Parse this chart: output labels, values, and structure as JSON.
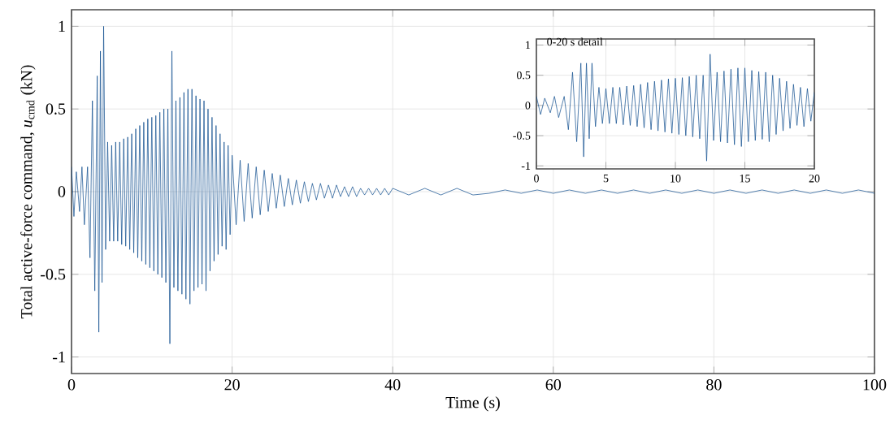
{
  "chart_data": [
    {
      "type": "line",
      "xlabel": "Time (s)",
      "ylabel": "Total active-force command, *u*$_{cmd}$ (kN)",
      "color": "#0b4a8c",
      "grid": true,
      "x": [
        0,
        0.3,
        0.6,
        1,
        1.3,
        1.6,
        2,
        2.3,
        2.6,
        2.9,
        3.2,
        3.4,
        3.6,
        3.8,
        4,
        4.25,
        4.5,
        4.75,
        5,
        5.25,
        5.5,
        5.75,
        6,
        6.25,
        6.5,
        6.75,
        7,
        7.25,
        7.5,
        7.75,
        8,
        8.25,
        8.5,
        8.75,
        9,
        9.25,
        9.5,
        9.75,
        10,
        10.25,
        10.5,
        10.75,
        11,
        11.25,
        11.5,
        11.75,
        12,
        12.25,
        12.5,
        12.75,
        13,
        13.25,
        13.5,
        13.75,
        14,
        14.25,
        14.5,
        14.75,
        15,
        15.25,
        15.5,
        15.75,
        16,
        16.25,
        16.5,
        16.75,
        17,
        17.25,
        17.5,
        17.75,
        18,
        18.25,
        18.5,
        18.75,
        19,
        19.25,
        19.5,
        19.75,
        20,
        20.5,
        21,
        21.5,
        22,
        22.5,
        23,
        23.5,
        24,
        24.5,
        25,
        25.5,
        26,
        26.5,
        27,
        27.5,
        28,
        28.5,
        29,
        29.5,
        30,
        30.5,
        31,
        31.5,
        32,
        32.5,
        33,
        33.5,
        34,
        34.5,
        35,
        35.5,
        36,
        36.5,
        37,
        37.5,
        38,
        38.5,
        39,
        39.5,
        40,
        42,
        44,
        46,
        48,
        50,
        52,
        54,
        56,
        58,
        60,
        62,
        64,
        66,
        68,
        70,
        72,
        74,
        76,
        78,
        80,
        82,
        84,
        86,
        88,
        90,
        92,
        94,
        96,
        98,
        100
      ],
      "values": [
        0.15,
        -0.15,
        0.12,
        -0.12,
        0.15,
        -0.2,
        0.15,
        -0.4,
        0.55,
        -0.6,
        0.7,
        -0.85,
        0.85,
        -0.55,
        1.0,
        -0.35,
        0.3,
        -0.3,
        0.28,
        -0.3,
        0.3,
        -0.3,
        0.3,
        -0.32,
        0.32,
        -0.33,
        0.33,
        -0.35,
        0.35,
        -0.37,
        0.38,
        -0.4,
        0.4,
        -0.42,
        0.42,
        -0.44,
        0.44,
        -0.46,
        0.45,
        -0.48,
        0.46,
        -0.5,
        0.48,
        -0.52,
        0.5,
        -0.55,
        0.5,
        -0.92,
        0.85,
        -0.58,
        0.55,
        -0.6,
        0.57,
        -0.62,
        0.6,
        -0.65,
        0.62,
        -0.68,
        0.62,
        -0.6,
        0.58,
        -0.58,
        0.56,
        -0.56,
        0.55,
        -0.6,
        0.5,
        -0.48,
        0.45,
        -0.42,
        0.4,
        -0.38,
        0.35,
        -0.33,
        0.3,
        -0.35,
        0.28,
        -0.26,
        0.22,
        -0.2,
        0.19,
        -0.18,
        0.17,
        -0.16,
        0.15,
        -0.14,
        0.13,
        -0.12,
        0.11,
        -0.1,
        0.1,
        -0.09,
        0.08,
        -0.08,
        0.07,
        -0.07,
        0.06,
        -0.06,
        0.05,
        -0.05,
        0.05,
        -0.04,
        0.04,
        -0.04,
        0.04,
        -0.03,
        0.03,
        -0.03,
        0.03,
        -0.03,
        0.02,
        -0.02,
        0.02,
        -0.02,
        0.02,
        -0.02,
        0.02,
        -0.02,
        0.02,
        -0.02,
        0.02,
        -0.02,
        0.02,
        -0.02,
        -0.01,
        0.01,
        -0.01,
        0.01,
        -0.01,
        0.01,
        -0.01,
        0.01,
        -0.01,
        0.01,
        -0.01,
        0.01,
        -0.01,
        0.01,
        -0.01,
        0.01,
        -0.01,
        0.01,
        -0.01,
        0.01,
        -0.01,
        0.01,
        -0.01,
        0.01,
        -0.01
      ],
      "xlim": [
        0,
        100
      ],
      "ylim": [
        -1.1,
        1.1
      ],
      "xticks": [
        0,
        20,
        40,
        60,
        80,
        100
      ],
      "yticks": [
        -1,
        -0.5,
        0,
        0.5,
        1
      ]
    },
    {
      "type": "line",
      "title": "0-20 s detail",
      "color": "#0b4a8c",
      "grid": true,
      "x": [
        0,
        0.3,
        0.6,
        1,
        1.3,
        1.6,
        2,
        2.3,
        2.6,
        2.9,
        3.2,
        3.4,
        3.6,
        3.8,
        4,
        4.25,
        4.5,
        4.75,
        5,
        5.25,
        5.5,
        5.75,
        6,
        6.25,
        6.5,
        6.75,
        7,
        7.25,
        7.5,
        7.75,
        8,
        8.25,
        8.5,
        8.75,
        9,
        9.25,
        9.5,
        9.75,
        10,
        10.25,
        10.5,
        10.75,
        11,
        11.25,
        11.5,
        11.75,
        12,
        12.25,
        12.5,
        12.75,
        13,
        13.25,
        13.5,
        13.75,
        14,
        14.25,
        14.5,
        14.75,
        15,
        15.25,
        15.5,
        15.75,
        16,
        16.25,
        16.5,
        16.75,
        17,
        17.25,
        17.5,
        17.75,
        18,
        18.25,
        18.5,
        18.75,
        19,
        19.25,
        19.5,
        19.75,
        20
      ],
      "values": [
        0.15,
        -0.15,
        0.12,
        -0.12,
        0.15,
        -0.2,
        0.15,
        -0.4,
        0.55,
        -0.6,
        0.7,
        -0.85,
        0.7,
        -0.55,
        0.7,
        -0.35,
        0.3,
        -0.3,
        0.28,
        -0.3,
        0.3,
        -0.3,
        0.3,
        -0.32,
        0.32,
        -0.33,
        0.33,
        -0.35,
        0.35,
        -0.37,
        0.38,
        -0.4,
        0.4,
        -0.42,
        0.42,
        -0.44,
        0.44,
        -0.46,
        0.45,
        -0.48,
        0.46,
        -0.5,
        0.48,
        -0.52,
        0.5,
        -0.55,
        0.5,
        -0.92,
        0.85,
        -0.58,
        0.55,
        -0.6,
        0.57,
        -0.62,
        0.6,
        -0.65,
        0.62,
        -0.68,
        0.62,
        -0.6,
        0.58,
        -0.58,
        0.56,
        -0.56,
        0.55,
        -0.6,
        0.5,
        -0.48,
        0.45,
        -0.42,
        0.4,
        -0.38,
        0.35,
        -0.33,
        0.3,
        -0.35,
        0.28,
        -0.26,
        0.22
      ],
      "xlim": [
        0,
        20
      ],
      "ylim": [
        -1.05,
        1.1
      ],
      "xticks": [
        0,
        5,
        10,
        15,
        20
      ],
      "yticks": [
        -1,
        -0.5,
        0,
        0.5,
        1
      ]
    }
  ]
}
